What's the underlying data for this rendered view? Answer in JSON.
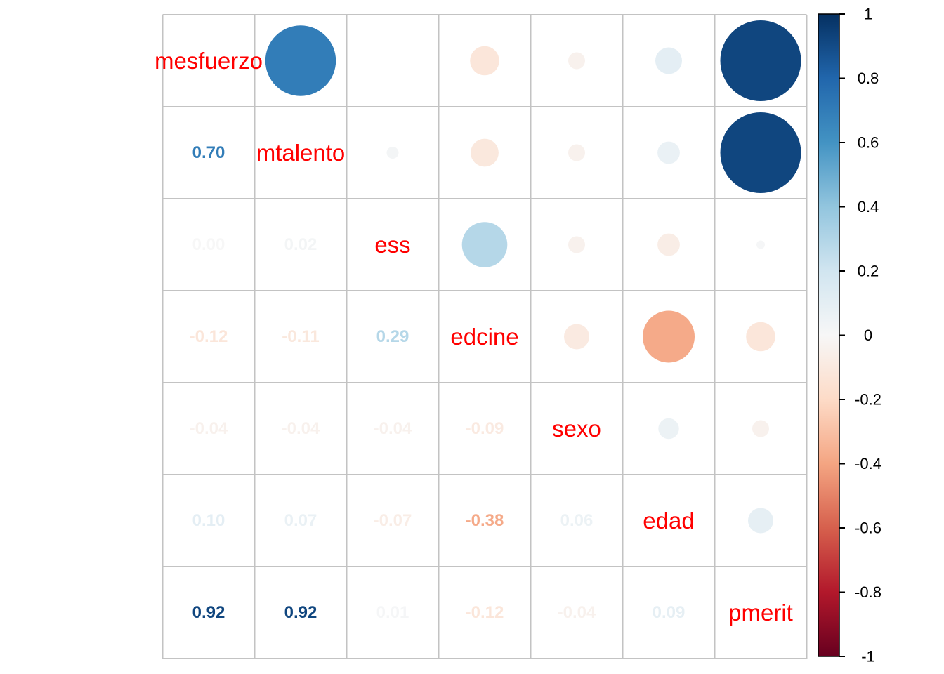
{
  "chart_data": {
    "type": "heatmap",
    "subtype": "correlation-matrix-correlogram",
    "variables": [
      "mesfuerzo",
      "mtalento",
      "ess",
      "edcine",
      "sexo",
      "edad",
      "pmerit"
    ],
    "lower_triangle_values": [
      {
        "r": 1,
        "c": 0,
        "row": "mtalento",
        "col": "mesfuerzo",
        "label": "0.70",
        "value": 0.7
      },
      {
        "r": 2,
        "c": 0,
        "row": "ess",
        "col": "mesfuerzo",
        "label": "0.00",
        "value": 0.0
      },
      {
        "r": 2,
        "c": 1,
        "row": "ess",
        "col": "mtalento",
        "label": "0.02",
        "value": 0.02
      },
      {
        "r": 3,
        "c": 0,
        "row": "edcine",
        "col": "mesfuerzo",
        "label": "-0.12",
        "value": -0.12
      },
      {
        "r": 3,
        "c": 1,
        "row": "edcine",
        "col": "mtalento",
        "label": "-0.11",
        "value": -0.11
      },
      {
        "r": 3,
        "c": 2,
        "row": "edcine",
        "col": "ess",
        "label": "0.29",
        "value": 0.29
      },
      {
        "r": 4,
        "c": 0,
        "row": "sexo",
        "col": "mesfuerzo",
        "label": "-0.04",
        "value": -0.04
      },
      {
        "r": 4,
        "c": 1,
        "row": "sexo",
        "col": "mtalento",
        "label": "-0.04",
        "value": -0.04
      },
      {
        "r": 4,
        "c": 2,
        "row": "sexo",
        "col": "ess",
        "label": "-0.04",
        "value": -0.04
      },
      {
        "r": 4,
        "c": 3,
        "row": "sexo",
        "col": "edcine",
        "label": "-0.09",
        "value": -0.09
      },
      {
        "r": 5,
        "c": 0,
        "row": "edad",
        "col": "mesfuerzo",
        "label": "0.10",
        "value": 0.1
      },
      {
        "r": 5,
        "c": 1,
        "row": "edad",
        "col": "mtalento",
        "label": "0.07",
        "value": 0.07
      },
      {
        "r": 5,
        "c": 2,
        "row": "edad",
        "col": "ess",
        "label": "-0.07",
        "value": -0.07
      },
      {
        "r": 5,
        "c": 3,
        "row": "edad",
        "col": "edcine",
        "label": "-0.38",
        "value": -0.38
      },
      {
        "r": 5,
        "c": 4,
        "row": "edad",
        "col": "sexo",
        "label": "0.06",
        "value": 0.06
      },
      {
        "r": 6,
        "c": 0,
        "row": "pmerit",
        "col": "mesfuerzo",
        "label": "0.92",
        "value": 0.92
      },
      {
        "r": 6,
        "c": 1,
        "row": "pmerit",
        "col": "mtalento",
        "label": "0.92",
        "value": 0.92
      },
      {
        "r": 6,
        "c": 2,
        "row": "pmerit",
        "col": "ess",
        "label": "0.01",
        "value": 0.01
      },
      {
        "r": 6,
        "c": 3,
        "row": "pmerit",
        "col": "edcine",
        "label": "-0.12",
        "value": -0.12
      },
      {
        "r": 6,
        "c": 4,
        "row": "pmerit",
        "col": "sexo",
        "label": "-0.04",
        "value": -0.04
      },
      {
        "r": 6,
        "c": 5,
        "row": "pmerit",
        "col": "edad",
        "label": "0.09",
        "value": 0.09
      }
    ],
    "upper_triangle": "circles mirrored from lower-triangle values; area proportional to |r|; color from palette",
    "colorbar": {
      "min": -1,
      "max": 1,
      "position": "right",
      "tick_values": [
        1,
        0.8,
        0.6,
        0.4,
        0.2,
        0,
        -0.2,
        -0.4,
        -0.6,
        -0.8,
        -1
      ],
      "tick_labels": [
        "1",
        "0.8",
        "0.6",
        "0.4",
        "0.2",
        "0",
        "-0.2",
        "-0.4",
        "-0.6",
        "-0.8",
        "-1"
      ]
    },
    "palette_stops": [
      {
        "value": -1.0,
        "color": "#67001F"
      },
      {
        "value": -0.8,
        "color": "#B2182B"
      },
      {
        "value": -0.6,
        "color": "#D6604D"
      },
      {
        "value": -0.4,
        "color": "#F4A582"
      },
      {
        "value": -0.2,
        "color": "#FDDBC7"
      },
      {
        "value": 0.0,
        "color": "#F7F7F7"
      },
      {
        "value": 0.2,
        "color": "#D1E5F0"
      },
      {
        "value": 0.4,
        "color": "#92C5DE"
      },
      {
        "value": 0.6,
        "color": "#4393C3"
      },
      {
        "value": 0.8,
        "color": "#2166AC"
      },
      {
        "value": 1.0,
        "color": "#053061"
      }
    ],
    "colors": {
      "diagonal_label": "#FF0000",
      "grid": "#C3C3C3",
      "background": "#FFFFFF",
      "colorbar_border": "#000000",
      "tick_text": "#000000"
    },
    "grid_on": true,
    "legend_position": "right"
  }
}
